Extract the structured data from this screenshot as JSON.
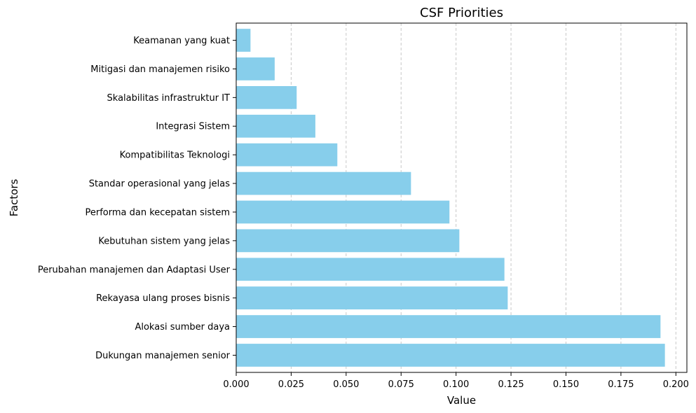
{
  "chart_data": {
    "type": "bar",
    "orientation": "horizontal",
    "title": "CSF Priorities",
    "xlabel": "Value",
    "ylabel": "Factors",
    "categories": [
      "Dukungan manajemen senior",
      "Alokasi sumber daya",
      "Rekayasa ulang proses bisnis",
      "Perubahan manajemen dan Adaptasi User",
      "Kebutuhan sistem yang jelas",
      "Performa dan kecepatan sistem",
      "Standar operasional yang jelas",
      "Kompatibilitas Teknologi",
      "Integrasi Sistem",
      "Skalabilitas infrastruktur IT",
      "Mitigasi dan manajemen risiko",
      "Keamanan yang kuat"
    ],
    "values": [
      0.195,
      0.193,
      0.1235,
      0.122,
      0.1015,
      0.097,
      0.0795,
      0.046,
      0.036,
      0.0275,
      0.0175,
      0.0065
    ],
    "xlim": [
      0,
      0.205
    ],
    "xticks": [
      0.0,
      0.025,
      0.05,
      0.075,
      0.1,
      0.125,
      0.15,
      0.175,
      0.2
    ],
    "xtick_labels": [
      "0.000",
      "0.025",
      "0.050",
      "0.075",
      "0.100",
      "0.125",
      "0.150",
      "0.175",
      "0.200"
    ],
    "grid": "x-dashed",
    "bar_color": "#87ceeb"
  }
}
